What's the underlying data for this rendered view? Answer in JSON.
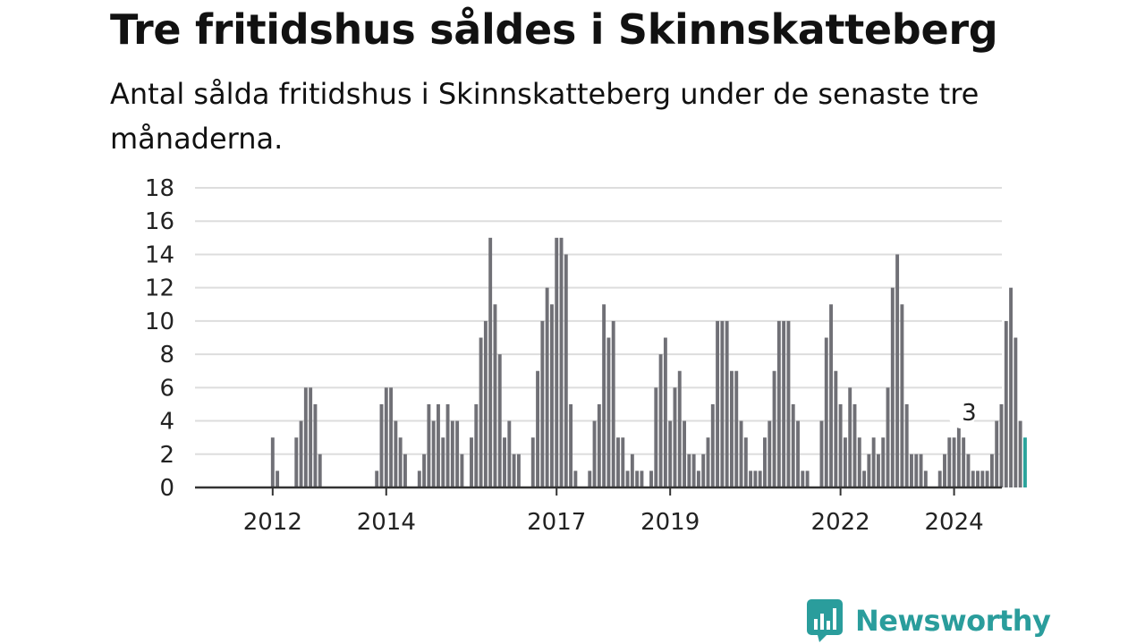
{
  "title": "Tre fritidshus såldes i Skinnskatteberg",
  "subtitle": "Antal sålda fritidshus i Skinnskatteberg under de senaste tre månaderna.",
  "brand": "Newsworthy",
  "colors": {
    "bar": "#707076",
    "highlight": "#2aa39b",
    "grid": "#dddddd",
    "brand": "#2a9d9c"
  },
  "chart_data": {
    "type": "bar",
    "title": "Tre fritidshus såldes i Skinnskatteberg",
    "xlabel": "",
    "ylabel": "",
    "ylim": [
      0,
      18
    ],
    "yticks": [
      0,
      2,
      4,
      6,
      8,
      10,
      12,
      14,
      16,
      18
    ],
    "grid": true,
    "xticks": [
      {
        "label": "2012",
        "month": 8
      },
      {
        "label": "2014",
        "month": 32
      },
      {
        "label": "2017",
        "month": 68
      },
      {
        "label": "2019",
        "month": 92
      },
      {
        "label": "2022",
        "month": 128
      },
      {
        "label": "2024",
        "month": 152
      }
    ],
    "series": [
      {
        "values": [
          0,
          0,
          0,
          0,
          0,
          0,
          0,
          0,
          3,
          1,
          0,
          0,
          0,
          3,
          4,
          6,
          6,
          5,
          2,
          0,
          0,
          0,
          0,
          0,
          0,
          0,
          0,
          0,
          0,
          0,
          1,
          5,
          6,
          6,
          4,
          3,
          2,
          0,
          0,
          1,
          2,
          5,
          4,
          5,
          3,
          5,
          4,
          4,
          2,
          0,
          3,
          5,
          9,
          10,
          15,
          11,
          8,
          3,
          4,
          2,
          2,
          0,
          0,
          3,
          7,
          10,
          12,
          11,
          15,
          15,
          14,
          5,
          1,
          0,
          0,
          1,
          4,
          5,
          11,
          9,
          10,
          3,
          3,
          1,
          2,
          1,
          1,
          0,
          1,
          6,
          8,
          9,
          4,
          6,
          7,
          4,
          2,
          2,
          1,
          2,
          3,
          5,
          10,
          10,
          10,
          7,
          7,
          4,
          3,
          1,
          1,
          1,
          3,
          4,
          7,
          10,
          10,
          10,
          5,
          4,
          1,
          1,
          0,
          0,
          4,
          9,
          11,
          7,
          5,
          3,
          6,
          5,
          3,
          1,
          2,
          3,
          2,
          3,
          6,
          12,
          14,
          11,
          5,
          2,
          2,
          2,
          1,
          0,
          0,
          1,
          2,
          3,
          3,
          4,
          3,
          2,
          1,
          1,
          1,
          1,
          2,
          4,
          5,
          10,
          12,
          9,
          4,
          3
        ]
      }
    ],
    "annotations": [
      {
        "label": "3",
        "value": 3,
        "month": 155
      }
    ]
  }
}
